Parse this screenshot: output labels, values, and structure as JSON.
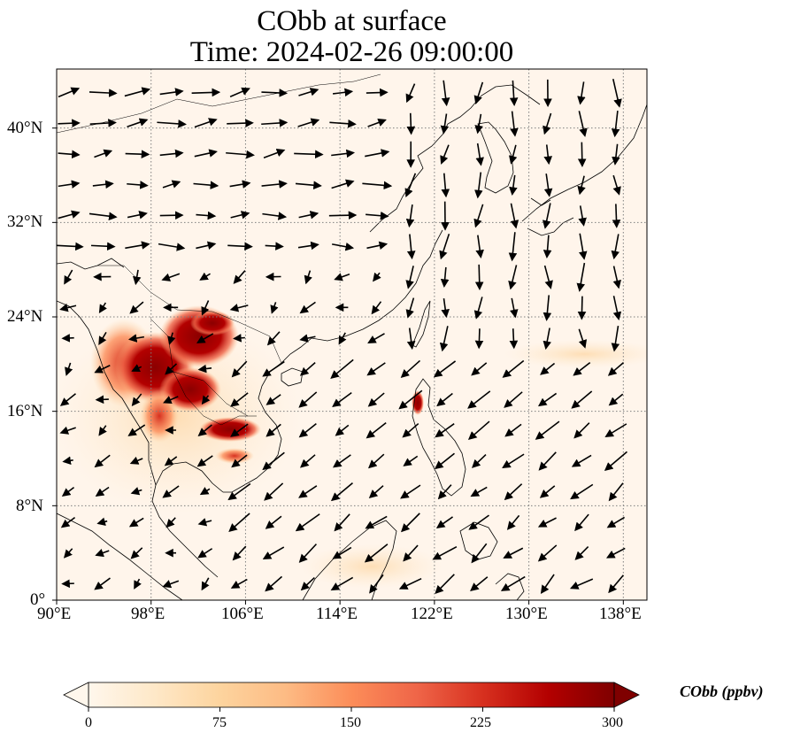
{
  "title": {
    "line1": "CObb at surface",
    "line2": "Time: 2024-02-26 09:00:00"
  },
  "map": {
    "variable": "CObb",
    "level": "surface",
    "lon_range": [
      90,
      140
    ],
    "lat_range": [
      0,
      45
    ],
    "lon_ticks": [
      "90°E",
      "98°E",
      "106°E",
      "114°E",
      "122°E",
      "130°E",
      "138°E"
    ],
    "lat_ticks": [
      "0°",
      "8°N",
      "16°N",
      "24°N",
      "32°N",
      "40°N"
    ],
    "gridlines": "dotted",
    "overlay": "wind vectors (arrows)",
    "colors": {
      "background_field": "#fff5eb",
      "coastline": "#000000",
      "high_concentration": "#7f0000"
    }
  },
  "colorbar": {
    "label": "CObb (ppbv)",
    "ticks": [
      "0",
      "75",
      "150",
      "225",
      "300"
    ],
    "range": [
      0,
      300
    ],
    "colormap": "OrRd",
    "extend": "both",
    "colors": [
      "#fff7ec",
      "#fee8c8",
      "#fdd49e",
      "#fdbb84",
      "#fc8d59",
      "#ef6548",
      "#d7301f",
      "#b30000",
      "#7f0000"
    ]
  }
}
